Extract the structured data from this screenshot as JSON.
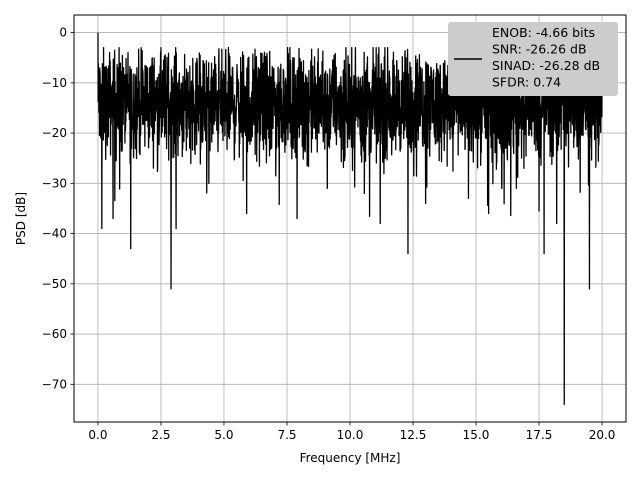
{
  "chart_data": {
    "type": "line",
    "title": "",
    "xlabel": "Frequency [MHz]",
    "ylabel": "PSD [dB]",
    "xlim": [
      -0.95,
      20.95
    ],
    "ylim": [
      -77.5,
      3.5
    ],
    "xticks": [
      0.0,
      2.5,
      5.0,
      7.5,
      10.0,
      12.5,
      15.0,
      17.5,
      20.0
    ],
    "xtick_labels": [
      "0.0",
      "2.5",
      "5.0",
      "7.5",
      "10.0",
      "12.5",
      "15.0",
      "17.5",
      "20.0"
    ],
    "yticks": [
      0,
      -10,
      -20,
      -30,
      -40,
      -50,
      -60,
      -70
    ],
    "ytick_labels": [
      "0",
      "−10",
      "−20",
      "−30",
      "−40",
      "−50",
      "−60",
      "−70"
    ],
    "grid": true,
    "legend_position": "top-right",
    "series": [
      {
        "color": "#000000",
        "style": "noise-floor",
        "x_range": [
          0.0,
          20.0
        ],
        "band_center_dB": -14,
        "band_spread_dB": 5,
        "peaks": [
          {
            "x": 0.0,
            "y": 0.0
          }
        ],
        "dips": [
          {
            "x": 0.15,
            "y": -39
          },
          {
            "x": 0.6,
            "y": -37
          },
          {
            "x": 1.3,
            "y": -43
          },
          {
            "x": 2.9,
            "y": -51
          },
          {
            "x": 3.1,
            "y": -39
          },
          {
            "x": 4.4,
            "y": -30
          },
          {
            "x": 5.9,
            "y": -36
          },
          {
            "x": 7.9,
            "y": -37
          },
          {
            "x": 9.1,
            "y": -31
          },
          {
            "x": 11.2,
            "y": -38
          },
          {
            "x": 12.3,
            "y": -44
          },
          {
            "x": 13.0,
            "y": -34
          },
          {
            "x": 14.7,
            "y": -33
          },
          {
            "x": 15.5,
            "y": -36
          },
          {
            "x": 16.6,
            "y": -31
          },
          {
            "x": 17.7,
            "y": -44
          },
          {
            "x": 18.2,
            "y": -38
          },
          {
            "x": 18.5,
            "y": -74
          },
          {
            "x": 19.5,
            "y": -51
          }
        ]
      }
    ],
    "legend": {
      "lines": [
        "ENOB: -4.66 bits",
        "SNR: -26.26 dB",
        "SINAD: -26.28 dB",
        "SFDR: 0.74"
      ]
    }
  }
}
